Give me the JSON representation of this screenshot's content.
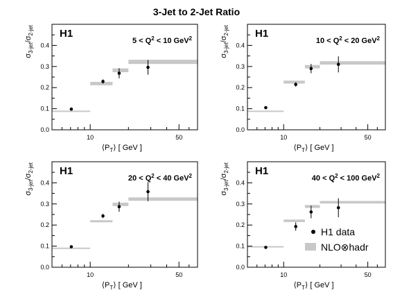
{
  "figure_title": "3-Jet to 2-Jet Ratio",
  "colors": {
    "nlo_band": "#c8c8c8",
    "data_point": "#000000",
    "axes": "#000000"
  },
  "legend": {
    "data_label": "H1 data",
    "nlo_label": "NLO⊗hadr"
  },
  "chart_data": [
    {
      "type": "scatter",
      "experiment_label": "H1",
      "title_parts": {
        "pre": "5 < Q",
        "sup": "2",
        "post": " < 10 GeV",
        "sup2": "2"
      },
      "xlabel": {
        "open": "⟨P",
        "sub": "T",
        "close": "⟩ [ GeV ]"
      },
      "ylabel": {
        "s1": "σ",
        "sub1": "3-jet",
        "slash": "/σ",
        "sub2": "2-jet"
      },
      "xscale": "log",
      "xlim": [
        5,
        70
      ],
      "ylim": [
        0,
        0.5
      ],
      "xticks": [
        10,
        50
      ],
      "yticks": [
        0.0,
        0.1,
        0.2,
        0.3,
        0.4
      ],
      "points": [
        {
          "x": 7.1,
          "y": 0.098,
          "err": 0.003
        },
        {
          "x": 12.6,
          "y": 0.229,
          "err": 0.01
        },
        {
          "x": 16.9,
          "y": 0.268,
          "err": 0.024
        },
        {
          "x": 28.5,
          "y": 0.296,
          "err": 0.035
        }
      ],
      "nlo": [
        {
          "xmin": 5,
          "xmax": 10,
          "y": 0.089,
          "h": 0.004
        },
        {
          "xmin": 10,
          "xmax": 15,
          "y": 0.219,
          "h": 0.016
        },
        {
          "xmin": 15,
          "xmax": 20,
          "y": 0.282,
          "h": 0.018
        },
        {
          "xmin": 20,
          "xmax": 70,
          "y": 0.322,
          "h": 0.02
        }
      ],
      "grid": false
    },
    {
      "type": "scatter",
      "experiment_label": "H1",
      "title_parts": {
        "pre": "10 < Q",
        "sup": "2",
        "post": " < 20 GeV",
        "sup2": "2"
      },
      "xlabel": {
        "open": "⟨P",
        "sub": "T",
        "close": "⟩ [ GeV ]"
      },
      "ylabel": {
        "s1": "σ",
        "sub1": "3-jet",
        "slash": "/σ",
        "sub2": "2-jet"
      },
      "xscale": "log",
      "xlim": [
        5,
        70
      ],
      "ylim": [
        0,
        0.5
      ],
      "xticks": [
        10,
        50
      ],
      "yticks": [
        0.0,
        0.1,
        0.2,
        0.3,
        0.4
      ],
      "points": [
        {
          "x": 7.1,
          "y": 0.105,
          "err": 0.003
        },
        {
          "x": 12.6,
          "y": 0.215,
          "err": 0.01
        },
        {
          "x": 16.9,
          "y": 0.29,
          "err": 0.022
        },
        {
          "x": 28.5,
          "y": 0.31,
          "err": 0.038
        }
      ],
      "nlo": [
        {
          "xmin": 5,
          "xmax": 10,
          "y": 0.089,
          "h": 0.004
        },
        {
          "xmin": 10,
          "xmax": 15,
          "y": 0.226,
          "h": 0.014
        },
        {
          "xmin": 15,
          "xmax": 20,
          "y": 0.299,
          "h": 0.016
        },
        {
          "xmin": 20,
          "xmax": 70,
          "y": 0.317,
          "h": 0.016
        }
      ],
      "grid": false
    },
    {
      "type": "scatter",
      "experiment_label": "H1",
      "title_parts": {
        "pre": "20 < Q",
        "sup": "2",
        "post": " < 40 GeV",
        "sup2": "2"
      },
      "xlabel": {
        "open": "⟨P",
        "sub": "T",
        "close": "⟩ [ GeV ]"
      },
      "ylabel": {
        "s1": "σ",
        "sub1": "3-jet",
        "slash": "/σ",
        "sub2": "2-jet"
      },
      "xscale": "log",
      "xlim": [
        5,
        70
      ],
      "ylim": [
        0,
        0.5
      ],
      "xticks": [
        10,
        50
      ],
      "yticks": [
        0.0,
        0.1,
        0.2,
        0.3,
        0.4
      ],
      "points": [
        {
          "x": 7.1,
          "y": 0.097,
          "err": 0.003
        },
        {
          "x": 12.6,
          "y": 0.243,
          "err": 0.01
        },
        {
          "x": 16.9,
          "y": 0.287,
          "err": 0.024
        },
        {
          "x": 28.5,
          "y": 0.358,
          "err": 0.045
        }
      ],
      "nlo": [
        {
          "xmin": 5,
          "xmax": 10,
          "y": 0.091,
          "h": 0.004
        },
        {
          "xmin": 10,
          "xmax": 15,
          "y": 0.218,
          "h": 0.01
        },
        {
          "xmin": 15,
          "xmax": 20,
          "y": 0.298,
          "h": 0.016
        },
        {
          "xmin": 20,
          "xmax": 70,
          "y": 0.323,
          "h": 0.016
        }
      ],
      "grid": false
    },
    {
      "type": "scatter",
      "experiment_label": "H1",
      "title_parts": {
        "pre": "40 < Q",
        "sup": "2",
        "post": " < 100 GeV",
        "sup2": "2"
      },
      "xlabel": {
        "open": "⟨P",
        "sub": "T",
        "close": "⟩ [ GeV ]"
      },
      "ylabel": {
        "s1": "σ",
        "sub1": "3-jet",
        "slash": "/σ",
        "sub2": "2-jet"
      },
      "xscale": "log",
      "xlim": [
        5,
        70
      ],
      "ylim": [
        0,
        0.5
      ],
      "xticks": [
        10,
        50
      ],
      "yticks": [
        0.0,
        0.1,
        0.2,
        0.3,
        0.4
      ],
      "points": [
        {
          "x": 7.1,
          "y": 0.094,
          "err": 0.004
        },
        {
          "x": 12.6,
          "y": 0.193,
          "err": 0.02
        },
        {
          "x": 16.9,
          "y": 0.262,
          "err": 0.03
        },
        {
          "x": 28.5,
          "y": 0.282,
          "err": 0.045
        }
      ],
      "nlo": [
        {
          "xmin": 5,
          "xmax": 10,
          "y": 0.097,
          "h": 0.006
        },
        {
          "xmin": 10,
          "xmax": 15,
          "y": 0.22,
          "h": 0.012
        },
        {
          "xmin": 15,
          "xmax": 20,
          "y": 0.288,
          "h": 0.014
        },
        {
          "xmin": 20,
          "xmax": 70,
          "y": 0.308,
          "h": 0.012
        }
      ],
      "grid": false
    }
  ]
}
